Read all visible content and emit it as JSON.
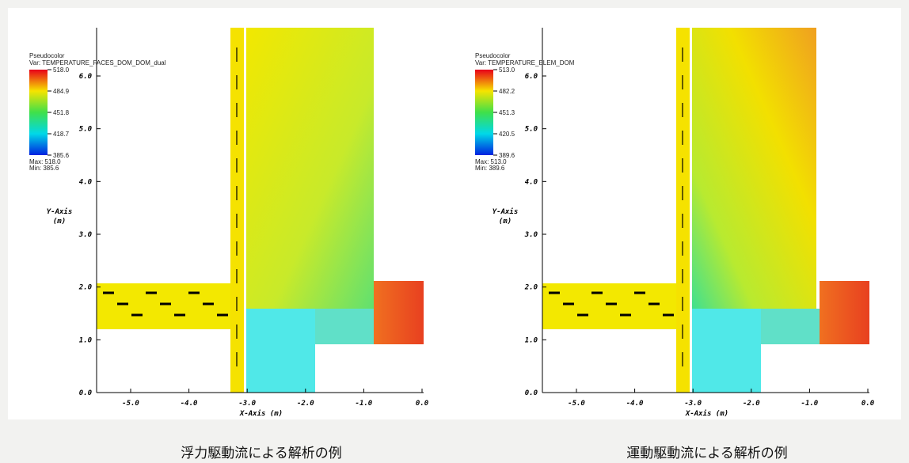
{
  "panels": [
    {
      "legend_title": "Pseudocolor",
      "variable": "Var: TEMPERATURE_FACES_DOM_DOM_dual",
      "colorbar_labels": [
        "518.0",
        "484.9",
        "451.8",
        "418.7",
        "385.6"
      ],
      "max": "Max: 518.0",
      "min": "Min: 385.6",
      "y_axis_label": "Y-Axis",
      "y_axis_unit": "(m)",
      "x_axis_label": "X-Axis (m)",
      "xticks": [
        "-5.0",
        "-4.0",
        "-3.0",
        "-2.0",
        "-1.0",
        "0.0"
      ],
      "yticks": [
        "0.0",
        "1.0",
        "2.0",
        "3.0",
        "4.0",
        "5.0",
        "6.0"
      ],
      "caption": "浮力駆動流による解析の例"
    },
    {
      "legend_title": "Pseudocolor",
      "variable": "Var: TEMPERATURE_ELEM_DOM",
      "colorbar_labels": [
        "513.0",
        "482.2",
        "451.3",
        "420.5",
        "389.6"
      ],
      "max": "Max: 513.0",
      "min": "Min: 389.6",
      "y_axis_label": "Y-Axis",
      "y_axis_unit": "(m)",
      "x_axis_label": "X-Axis (m)",
      "xticks": [
        "-5.0",
        "-4.0",
        "-3.0",
        "-2.0",
        "-1.0",
        "0.0"
      ],
      "yticks": [
        "0.0",
        "1.0",
        "2.0",
        "3.0",
        "4.0",
        "5.0",
        "6.0"
      ],
      "caption": "運動駆動流による解析の例"
    }
  ]
}
